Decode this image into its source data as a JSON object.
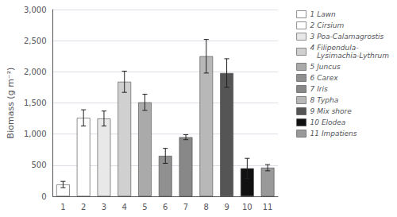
{
  "chart_data": {
    "type": "bar",
    "categories": [
      "1",
      "2",
      "3",
      "4",
      "5",
      "6",
      "7",
      "8",
      "9",
      "10",
      "11"
    ],
    "values": [
      190,
      1260,
      1250,
      1840,
      1510,
      650,
      950,
      2250,
      1980,
      450,
      460
    ],
    "errors": [
      50,
      130,
      120,
      170,
      130,
      120,
      40,
      270,
      230,
      160,
      50
    ],
    "colors": [
      "#ffffff",
      "#ffffff",
      "#e8e8e8",
      "#d0d0d0",
      "#aaaaaa",
      "#909090",
      "#888888",
      "#b8b8b8",
      "#555555",
      "#111111",
      "#999999"
    ],
    "legend_labels": [
      "1 Lawn",
      "2 Cirsium",
      "3 Poa-Calamagrostis",
      "4 Filipendula-\n   Lysimachia-Lythrum",
      "5 Juncus",
      "6 Carex",
      "7 Iris",
      "8 Typha",
      "9 Mix shore",
      "10 Elodea",
      "11 Impatiens"
    ],
    "ylabel": "Biomass (g m⁻²)",
    "ylim": [
      0,
      3000
    ],
    "yticks": [
      0,
      500,
      1000,
      1500,
      2000,
      2500,
      3000
    ],
    "grid": true,
    "legend": "right"
  }
}
